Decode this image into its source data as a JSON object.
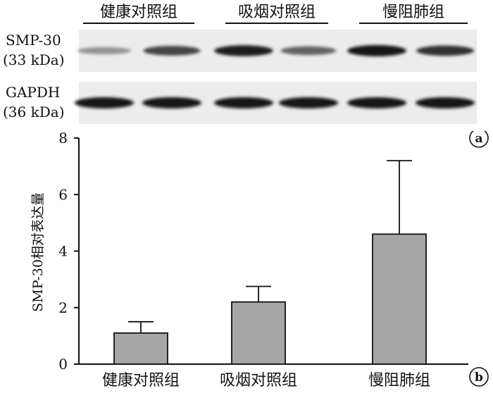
{
  "blot": {
    "group_labels": [
      "健康对照组",
      "吸烟对照组",
      "慢阻肺组"
    ],
    "rows": [
      {
        "name": "SMP-30",
        "size": "(33 kDa)",
        "intensity": [
          0.35,
          0.75,
          0.95,
          0.6,
          1.0,
          0.85
        ]
      },
      {
        "name": "GAPDH",
        "size": "(36 kDa)",
        "intensity": [
          1.0,
          1.0,
          1.0,
          1.0,
          1.0,
          1.0
        ]
      }
    ],
    "panel_label": "a"
  },
  "chart_data": {
    "type": "bar",
    "categories": [
      "健康对照组",
      "吸烟对照组",
      "慢阻肺组"
    ],
    "values": [
      1.1,
      2.2,
      4.6
    ],
    "error_upper": [
      1.5,
      2.75,
      7.2
    ],
    "ylabel": "SMP-30相对表达量",
    "ylim": [
      0,
      8
    ],
    "yticks": [
      0,
      2,
      4,
      6,
      8
    ],
    "grid": false,
    "bar_color": "#a6a6a6",
    "panel_label": "b"
  }
}
